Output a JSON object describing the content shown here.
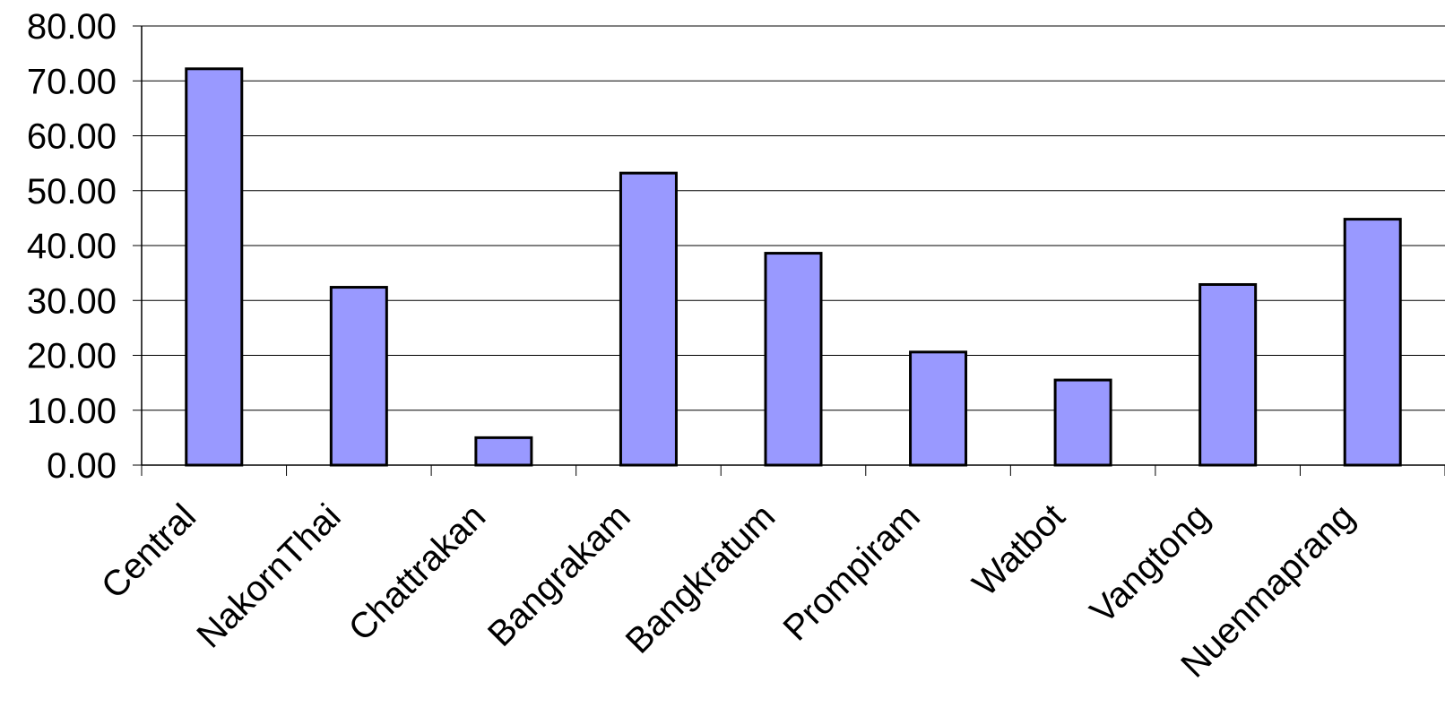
{
  "chart_data": {
    "type": "bar",
    "title": "",
    "xlabel": "",
    "ylabel": "",
    "categories": [
      "Central",
      "NakornThai",
      "Chattrakan",
      "Bangrakam",
      "Bangkratum",
      "Prompiram",
      "Watbot",
      "Vangtong",
      "Nuenmaprang"
    ],
    "values": [
      72.2,
      32.4,
      5.0,
      53.2,
      38.6,
      20.6,
      15.5,
      32.9,
      44.8
    ],
    "ylim": [
      0,
      80
    ],
    "yticks": [
      "0.00",
      "10.00",
      "20.00",
      "30.00",
      "40.00",
      "50.00",
      "60.00",
      "70.00",
      "80.00"
    ],
    "grid": true,
    "legend": "none",
    "bar_color": "#9999ff",
    "bar_edge_color": "#000000"
  }
}
